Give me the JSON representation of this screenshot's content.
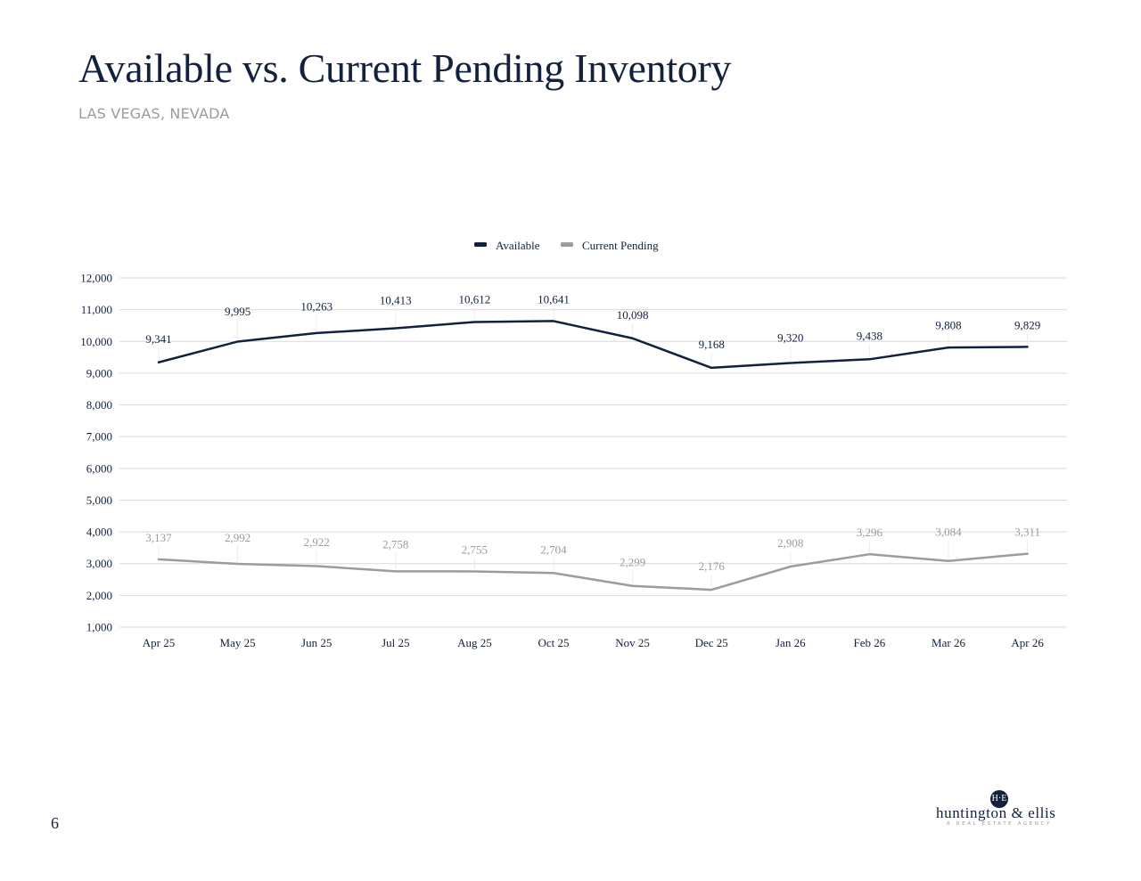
{
  "page": {
    "title": "Available vs. Current Pending Inventory",
    "subtitle": "LAS VEGAS, NEVADA",
    "page_number": "6"
  },
  "logo": {
    "mark": "H·E",
    "name": "huntington & ellis",
    "tagline": "A REAL ESTATE AGENCY"
  },
  "colors": {
    "available": "#13213f",
    "pending": "#9b9ba0",
    "grid": "#d9d9d9",
    "text": "#13213f"
  },
  "chart_data": {
    "type": "line",
    "categories": [
      "Apr 25",
      "May 25",
      "Jun 25",
      "Jul 25",
      "Aug 25",
      "Oct 25",
      "Nov 25",
      "Dec 25",
      "Jan 26",
      "Feb 26",
      "Mar 26",
      "Apr 26"
    ],
    "series": [
      {
        "name": "Available",
        "values": [
          9341,
          9995,
          10263,
          10413,
          10612,
          10641,
          10098,
          9168,
          9320,
          9438,
          9808,
          9829
        ],
        "labels": [
          "9,341",
          "9,995",
          "10,263",
          "10,413",
          "10,612",
          "10,641",
          "10,098",
          "9,168",
          "9,320",
          "9,438",
          "9,808",
          "9,829"
        ]
      },
      {
        "name": "Current Pending",
        "values": [
          3137,
          2992,
          2922,
          2758,
          2755,
          2704,
          2299,
          2176,
          2908,
          3296,
          3084,
          3311
        ],
        "labels": [
          "3,137",
          "2,992",
          "2,922",
          "2,758",
          "2,755",
          "2,704",
          "2,299",
          "2,176",
          "2,908",
          "3,296",
          "3,084",
          "3,311"
        ]
      }
    ],
    "yticks": [
      1000,
      2000,
      3000,
      4000,
      5000,
      6000,
      7000,
      8000,
      9000,
      10000,
      11000,
      12000
    ],
    "ytick_labels": [
      "1,000",
      "2,000",
      "3,000",
      "4,000",
      "5,000",
      "6,000",
      "7,000",
      "8,000",
      "9,000",
      "10,000",
      "11,000",
      "12,000"
    ],
    "ylim": [
      1000,
      12000
    ],
    "grid": true,
    "legend": "top-center"
  }
}
